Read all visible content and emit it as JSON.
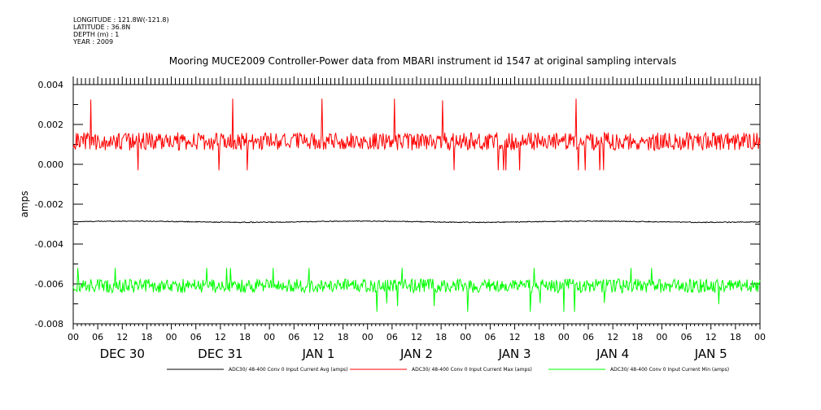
{
  "meta": {
    "longitude": "LONGITUDE : 121.8W(-121.8)",
    "latitude": "LATITUDE : 36.8N",
    "depth": "DEPTH (m) : 1",
    "year": "YEAR : 2009"
  },
  "chart_data": {
    "type": "line",
    "title": "Mooring MUCE2009 Controller-Power data from MBARI instrument id 1547 at original sampling intervals",
    "ylabel": "amps",
    "xlabel": "",
    "ylim": [
      -0.008,
      0.004
    ],
    "yticks": [
      "0.004",
      "0.002",
      "0.000",
      "-0.002",
      "-0.004",
      "-0.006",
      "-0.008"
    ],
    "hour_ticks": [
      "00",
      "06",
      "12",
      "18",
      "00",
      "06",
      "12",
      "18",
      "00",
      "06",
      "12",
      "18",
      "00",
      "06",
      "12",
      "18",
      "00",
      "06",
      "12",
      "18",
      "00",
      "06",
      "12",
      "18",
      "00",
      "06",
      "12",
      "18",
      "00"
    ],
    "date_labels": [
      "DEC 30",
      "DEC 31",
      "JAN  1",
      "JAN  2",
      "JAN  3",
      "JAN  4",
      "JAN  5"
    ],
    "hours_total": 168,
    "series": [
      {
        "name": "ADC30/ 48-400 Conv 0 Input Current  Avg (amps)",
        "color": "#000000",
        "mean": -0.00288,
        "noise": 4e-05
      },
      {
        "name": "ADC30/ 48-400 Conv 0 Input Current  Max (amps)",
        "color": "#ff0000",
        "mean": 0.00115,
        "noise": 0.00045,
        "peak": 0.0033,
        "low": -0.0003
      },
      {
        "name": "ADC30/ 48-400 Conv 0 Input Current  Min (amps)",
        "color": "#00ff00",
        "mean": -0.0061,
        "noise": 0.00035,
        "peak": -0.0052,
        "low": -0.0074
      }
    ],
    "grid": false,
    "legend_position": "bottom"
  }
}
